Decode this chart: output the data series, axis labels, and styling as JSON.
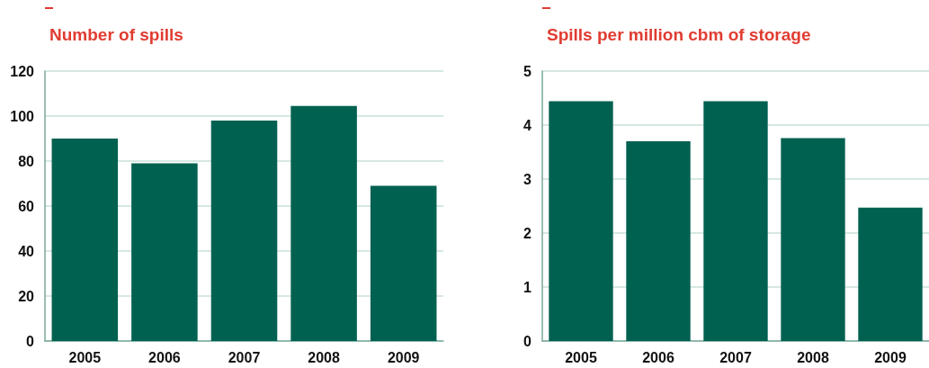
{
  "chart_data": [
    {
      "type": "bar",
      "title": "Number of spills",
      "categories": [
        "2005",
        "2006",
        "2007",
        "2008",
        "2009"
      ],
      "values": [
        90,
        79,
        98,
        104.5,
        69
      ],
      "color": "#016150",
      "ylim": [
        0,
        120
      ],
      "yticks": [
        0,
        20,
        40,
        60,
        80,
        100,
        120
      ],
      "grid": "y"
    },
    {
      "type": "bar",
      "title": "Spills per million cbm of storage",
      "categories": [
        "2005",
        "2006",
        "2007",
        "2008",
        "2009"
      ],
      "values": [
        4.44,
        3.7,
        4.44,
        3.76,
        2.47
      ],
      "color": "#016150",
      "ylim": [
        0,
        5
      ],
      "yticks": [
        0,
        1,
        2,
        3,
        4,
        5
      ],
      "grid": "y"
    }
  ]
}
